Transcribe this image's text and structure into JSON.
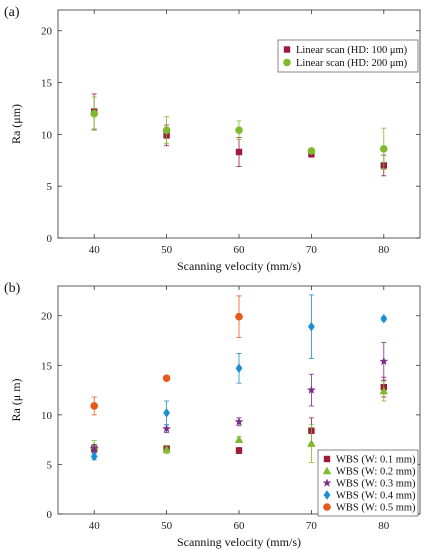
{
  "chart_data": [
    {
      "type": "scatter",
      "panel_label": "(a)",
      "xlabel": "Scanning velocity (mm/s)",
      "ylabel": "Ra (μm)",
      "xlim": [
        35,
        85
      ],
      "ylim": [
        0,
        22
      ],
      "xticks": [
        40,
        50,
        60,
        70,
        80
      ],
      "yticks": [
        0,
        5,
        10,
        15,
        20
      ],
      "grid": false,
      "legend_position": "top-right",
      "series": [
        {
          "name": "Linear scan (HD: 100 μm)",
          "marker": "square",
          "color": "#9b1b3a",
          "x": [
            40,
            50,
            60,
            70,
            80
          ],
          "y": [
            12.2,
            9.9,
            8.3,
            8.1,
            7.0
          ],
          "err": [
            1.7,
            1.0,
            1.4,
            0.3,
            1.0
          ]
        },
        {
          "name": "Linear scan (HD: 200 μm)",
          "marker": "circle",
          "color": "#7fba2c",
          "x": [
            40,
            50,
            60,
            70,
            80
          ],
          "y": [
            12.0,
            10.4,
            10.4,
            8.4,
            8.6
          ],
          "err": [
            1.6,
            1.3,
            0.9,
            0.2,
            2.0
          ]
        }
      ]
    },
    {
      "type": "scatter",
      "panel_label": "(b)",
      "xlabel": "Scanning velocity (mm/s)",
      "ylabel": "Ra (μ m)",
      "xlim": [
        35,
        85
      ],
      "ylim": [
        0,
        23
      ],
      "xticks": [
        40,
        50,
        60,
        70,
        80
      ],
      "yticks": [
        0,
        5,
        10,
        15,
        20
      ],
      "grid": false,
      "legend_position": "bottom-right",
      "series": [
        {
          "name": "WBS (W: 0.1 mm)",
          "marker": "square",
          "color": "#9b1b3a",
          "x": [
            40,
            50,
            60,
            70,
            80
          ],
          "y": [
            6.6,
            6.6,
            6.4,
            8.4,
            12.8
          ],
          "err": [
            0.3,
            0.3,
            0.3,
            1.3,
            1.0
          ]
        },
        {
          "name": "WBS (W: 0.2 mm)",
          "marker": "triangle",
          "color": "#7fba2c",
          "x": [
            40,
            50,
            60,
            70,
            80
          ],
          "y": [
            6.8,
            6.5,
            7.5,
            7.1,
            12.4
          ],
          "err": [
            0.6,
            0.4,
            0.3,
            1.9,
            1.0
          ]
        },
        {
          "name": "WBS (W: 0.3 mm)",
          "marker": "star",
          "color": "#7b2d8e",
          "x": [
            40,
            50,
            60,
            70,
            80
          ],
          "y": [
            6.6,
            8.6,
            9.3,
            12.5,
            15.4
          ],
          "err": [
            0.4,
            0.4,
            0.4,
            1.6,
            1.9
          ]
        },
        {
          "name": "WBS (W: 0.4 mm)",
          "marker": "diamond",
          "color": "#1b8fd1",
          "x": [
            40,
            50,
            60,
            70,
            80
          ],
          "y": [
            5.8,
            10.2,
            14.7,
            18.9,
            19.7
          ],
          "err": [
            0.3,
            1.2,
            1.5,
            3.2,
            0.2
          ]
        },
        {
          "name": "WBS (W: 0.5 mm)",
          "marker": "circle",
          "color": "#e8581c",
          "x": [
            40,
            50,
            60,
            70,
            80
          ],
          "y": [
            10.9,
            13.7,
            19.9,
            0,
            0
          ],
          "err": [
            0.9,
            0.2,
            2.1,
            0,
            0
          ],
          "present": [
            true,
            true,
            true,
            false,
            false
          ]
        }
      ]
    }
  ]
}
